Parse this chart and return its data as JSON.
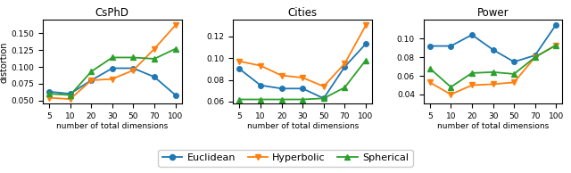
{
  "x_positions": [
    0,
    1,
    2,
    3,
    4,
    5,
    6
  ],
  "x_tick_labels": [
    "5",
    "10",
    "20",
    "30",
    "50",
    "70",
    "100"
  ],
  "subplots": [
    {
      "title": "CsPhD",
      "euclidean": [
        0.063,
        0.06,
        0.08,
        0.098,
        0.098,
        0.085,
        0.058
      ],
      "hyperbolic": [
        0.054,
        0.052,
        0.08,
        0.082,
        0.095,
        0.127,
        0.162
      ],
      "spherical": [
        0.06,
        0.058,
        0.093,
        0.114,
        0.114,
        0.112,
        0.127
      ],
      "ylim": [
        0.045,
        0.17
      ],
      "yticks": [
        0.05,
        0.075,
        0.1,
        0.125,
        0.15
      ]
    },
    {
      "title": "Cities",
      "euclidean": [
        0.09,
        0.075,
        0.072,
        0.072,
        0.063,
        0.092,
        0.113
      ],
      "hyperbolic": [
        0.097,
        0.093,
        0.084,
        0.082,
        0.074,
        0.095,
        0.13
      ],
      "spherical": [
        0.062,
        0.062,
        0.062,
        0.062,
        0.063,
        0.073,
        0.098
      ],
      "ylim": [
        0.058,
        0.135
      ],
      "yticks": [
        0.06,
        0.08,
        0.1,
        0.12
      ]
    },
    {
      "title": "Power",
      "euclidean": [
        0.092,
        0.092,
        0.104,
        0.088,
        0.075,
        0.082,
        0.115
      ],
      "hyperbolic": [
        0.053,
        0.04,
        0.05,
        0.051,
        0.053,
        0.08,
        0.093
      ],
      "spherical": [
        0.068,
        0.048,
        0.063,
        0.064,
        0.062,
        0.08,
        0.093
      ],
      "ylim": [
        0.03,
        0.12
      ],
      "yticks": [
        0.04,
        0.06,
        0.08,
        0.1
      ]
    }
  ],
  "xlabel": "number of total dimensions",
  "ylabel": "distortion",
  "colors": {
    "euclidean": "#1f77b4",
    "hyperbolic": "#ff7f0e",
    "spherical": "#2ca02c"
  },
  "marker_size": 4,
  "line_width": 1.3
}
